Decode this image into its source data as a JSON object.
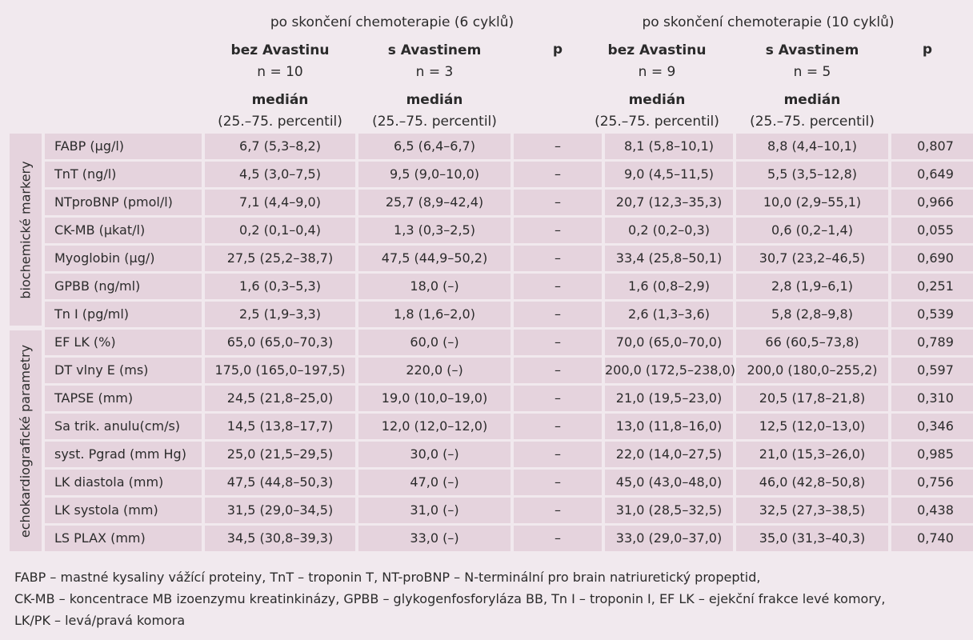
{
  "header": {
    "group1": "po skončení chemoterapie (6 cyklů)",
    "group2": "po skončení chemoterapie (10 cyklů)",
    "cols": [
      {
        "name": "bez Avastinu",
        "n": "n = 10",
        "stat": "medián",
        "range": "(25.–75. percentil)"
      },
      {
        "name": "s Avastinem",
        "n": "n = 3",
        "stat": "medián",
        "range": "(25.–75. percentil)"
      },
      {
        "name": "bez Avastinu",
        "n": "n = 9",
        "stat": "medián",
        "range": "(25.–75. percentil)"
      },
      {
        "name": "s Avastinem",
        "n": "n = 5",
        "stat": "medián",
        "range": "(25.–75. percentil)"
      }
    ],
    "p1": "p",
    "p2": "p"
  },
  "sections": {
    "biochem": "biochemické markery",
    "echo": "echokardiografické parametry"
  },
  "rows": [
    {
      "label": "FABP (µg/l)",
      "a": "6,7 (5,3–8,2)",
      "b": "6,5 (6,4–6,7)",
      "p1": "–",
      "c": "8,1 (5,8–10,1)",
      "d": "8,8 (4,4–10,1)",
      "p2": "0,807"
    },
    {
      "label": "TnT (ng/l)",
      "a": "4,5 (3,0–7,5)",
      "b": "9,5 (9,0–10,0)",
      "p1": "–",
      "c": "9,0 (4,5–11,5)",
      "d": "5,5 (3,5–12,8)",
      "p2": "0,649"
    },
    {
      "label": "NTproBNP (pmol/l)",
      "a": "7,1 (4,4–9,0)",
      "b": "25,7 (8,9–42,4)",
      "p1": "–",
      "c": "20,7 (12,3–35,3)",
      "d": "10,0 (2,9–55,1)",
      "p2": "0,966"
    },
    {
      "label": "CK-MB (µkat/l)",
      "a": "0,2 (0,1–0,4)",
      "b": "1,3 (0,3–2,5)",
      "p1": "–",
      "c": "0,2 (0,2–0,3)",
      "d": "0,6 (0,2–1,4)",
      "p2": "0,055"
    },
    {
      "label": "Myoglobin (µg/)",
      "a": "27,5 (25,2–38,7)",
      "b": "47,5 (44,9–50,2)",
      "p1": "–",
      "c": "33,4 (25,8–50,1)",
      "d": "30,7 (23,2–46,5)",
      "p2": "0,690"
    },
    {
      "label": "GPBB (ng/ml)",
      "a": "1,6 (0,3–5,3)",
      "b": "18,0 (–)",
      "p1": "–",
      "c": "1,6 (0,8–2,9)",
      "d": "2,8 (1,9–6,1)",
      "p2": "0,251"
    },
    {
      "label": "Tn I (pg/ml)",
      "a": "2,5 (1,9–3,3)",
      "b": "1,8 (1,6–2,0)",
      "p1": "–",
      "c": "2,6 (1,3–3,6)",
      "d": "5,8 (2,8–9,8)",
      "p2": "0,539"
    },
    {
      "label": "EF LK (%)",
      "a": "65,0 (65,0–70,3)",
      "b": "60,0 (–)",
      "p1": "–",
      "c": "70,0 (65,0–70,0)",
      "d": "66 (60,5–73,8)",
      "p2": "0,789"
    },
    {
      "label": "DT vlny E (ms)",
      "a": "175,0 (165,0–197,5)",
      "b": "220,0 (–)",
      "p1": "–",
      "c": "200,0 (172,5–238,0)",
      "d": "200,0 (180,0–255,2)",
      "p2": "0,597"
    },
    {
      "label": "TAPSE (mm)",
      "a": "24,5 (21,8–25,0)",
      "b": "19,0 (10,0–19,0)",
      "p1": "–",
      "c": "21,0 (19,5–23,0)",
      "d": "20,5 (17,8–21,8)",
      "p2": "0,310"
    },
    {
      "label": "Sa trik. anulu(cm/s)",
      "a": "14,5 (13,8–17,7)",
      "b": "12,0 (12,0–12,0)",
      "p1": "–",
      "c": "13,0 (11,8–16,0)",
      "d": "12,5 (12,0–13,0)",
      "p2": "0,346"
    },
    {
      "label": "syst. Pgrad (mm Hg)",
      "a": "25,0 (21,5–29,5)",
      "b": "30,0 (–)",
      "p1": "–",
      "c": "22,0 (14,0–27,5)",
      "d": "21,0 (15,3–26,0)",
      "p2": "0,985"
    },
    {
      "label": "LK diastola (mm)",
      "a": "47,5 (44,8–50,3)",
      "b": "47,0 (–)",
      "p1": "–",
      "c": "45,0 (43,0–48,0)",
      "d": "46,0 (42,8–50,8)",
      "p2": "0,756"
    },
    {
      "label": "LK systola (mm)",
      "a": "31,5 (29,0–34,5)",
      "b": "31,0 (–)",
      "p1": "–",
      "c": "31,0 (28,5–32,5)",
      "d": "32,5 (27,3–38,5)",
      "p2": "0,438"
    },
    {
      "label": "LS PLAX (mm)",
      "a": "34,5 (30,8–39,3)",
      "b": "33,0 (–)",
      "p1": "–",
      "c": "33,0 (29,0–37,0)",
      "d": "35,0 (31,3–40,3)",
      "p2": "0,740"
    }
  ],
  "footnote": {
    "line1": "FABP – mastné kysaliny vážící proteiny, TnT – troponin T, NT-proBNP – N-terminální pro brain natriuretický propeptid,",
    "line2": "CK-MB – koncentrace MB izoenzymu kreatinkinázy, GPBB – glykogenfosforyláza BB, Tn I – troponin I, EF LK – ejekční frakce levé komory,",
    "line3": "LK/PK – levá/pravá komora"
  }
}
